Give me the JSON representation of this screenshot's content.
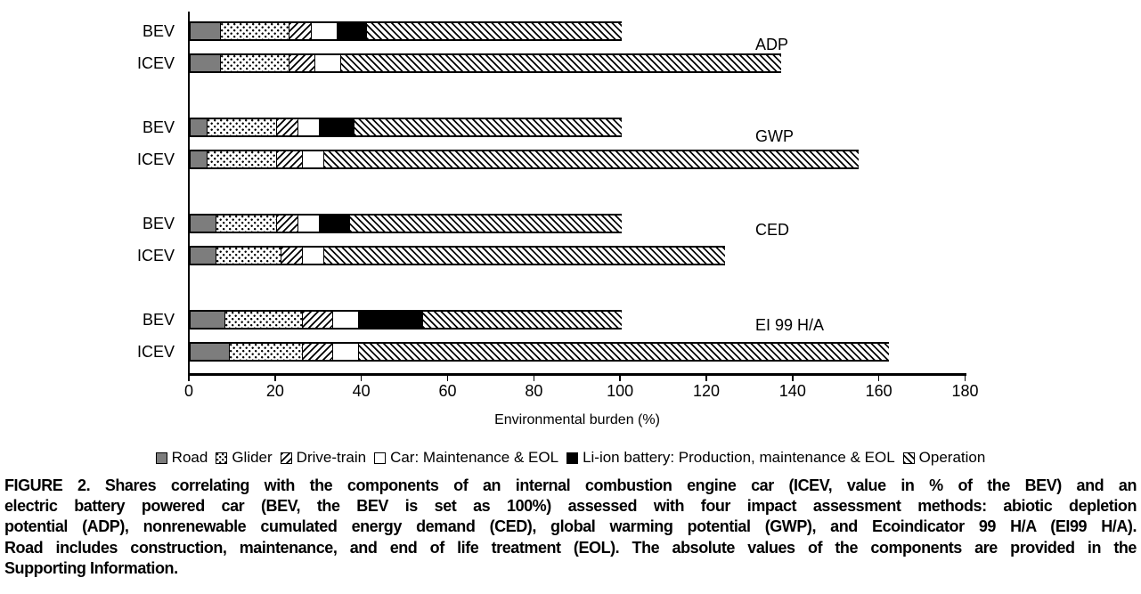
{
  "chart_data": {
    "type": "bar",
    "orientation": "horizontal-stacked",
    "title": "",
    "xlabel": "Environmental burden (%)",
    "ylabel": "",
    "xlim": [
      0,
      180
    ],
    "x_ticks": [
      0,
      20,
      40,
      60,
      80,
      100,
      120,
      140,
      160,
      180
    ],
    "grid": false,
    "legend_position": "bottom",
    "segment_keys": [
      "road",
      "glider",
      "drive_train",
      "car_maintenance_eol",
      "li_ion_battery",
      "operation"
    ],
    "legend": [
      {
        "key": "road",
        "label": "Road",
        "pattern": "solid-gray",
        "color": "#7d7d7d",
        "icon": "gray-square-swatch-icon"
      },
      {
        "key": "glider",
        "label": "Glider",
        "pattern": "dots",
        "color": "#000000",
        "icon": "dotted-square-swatch-icon"
      },
      {
        "key": "drive_train",
        "label": "Drive-train",
        "pattern": "hatch-forward-slash",
        "color": "#000000",
        "icon": "forward-hatch-square-swatch-icon"
      },
      {
        "key": "car_maintenance_eol",
        "label": "Car: Maintenance & EOL",
        "pattern": "white",
        "color": "#ffffff",
        "icon": "white-square-swatch-icon"
      },
      {
        "key": "li_ion_battery",
        "label": "Li-ion battery: Production, maintenance & EOL",
        "pattern": "solid-black",
        "color": "#000000",
        "icon": "black-square-swatch-icon"
      },
      {
        "key": "operation",
        "label": "Operation",
        "pattern": "hatch-back-slash",
        "color": "#000000",
        "icon": "back-hatch-square-swatch-icon"
      }
    ],
    "groups": [
      {
        "label": "ADP",
        "bars": [
          {
            "label": "BEV",
            "values": [
              7,
              16,
              5,
              6,
              7,
              59
            ],
            "total": 100
          },
          {
            "label": "ICEV",
            "values": [
              7,
              16,
              6,
              6,
              0,
              102
            ],
            "total": 137
          }
        ]
      },
      {
        "label": "GWP",
        "bars": [
          {
            "label": "BEV",
            "values": [
              4,
              16,
              5,
              5,
              8,
              62
            ],
            "total": 100
          },
          {
            "label": "ICEV",
            "values": [
              4,
              16,
              6,
              5,
              0,
              124
            ],
            "total": 155
          }
        ]
      },
      {
        "label": "CED",
        "bars": [
          {
            "label": "BEV",
            "values": [
              6,
              14,
              5,
              5,
              7,
              63
            ],
            "total": 100
          },
          {
            "label": "ICEV",
            "values": [
              6,
              15,
              5,
              5,
              0,
              93
            ],
            "total": 124
          }
        ]
      },
      {
        "label": "EI 99 H/A",
        "bars": [
          {
            "label": "BEV",
            "values": [
              8,
              18,
              7,
              6,
              15,
              46
            ],
            "total": 100
          },
          {
            "label": "ICEV",
            "values": [
              9,
              17,
              7,
              6,
              0,
              123
            ],
            "total": 162
          }
        ]
      }
    ]
  },
  "caption": {
    "lines": [
      "FIGURE 2. Shares correlating with the components of an internal combustion engine car (ICEV, value in % of the BEV) and an",
      "electric battery powered car (BEV, the BEV is set as 100%) assessed with four impact assessment methods: abiotic depletion",
      "potential (ADP), nonrenewable cumulated energy demand (CED), global warming potential (GWP), and Ecoindicator 99 H/A (EI99 H/A).",
      "Road includes construction, maintenance, and end of life treatment (EOL). The absolute values of the components are provided in the",
      "Supporting Information."
    ]
  }
}
